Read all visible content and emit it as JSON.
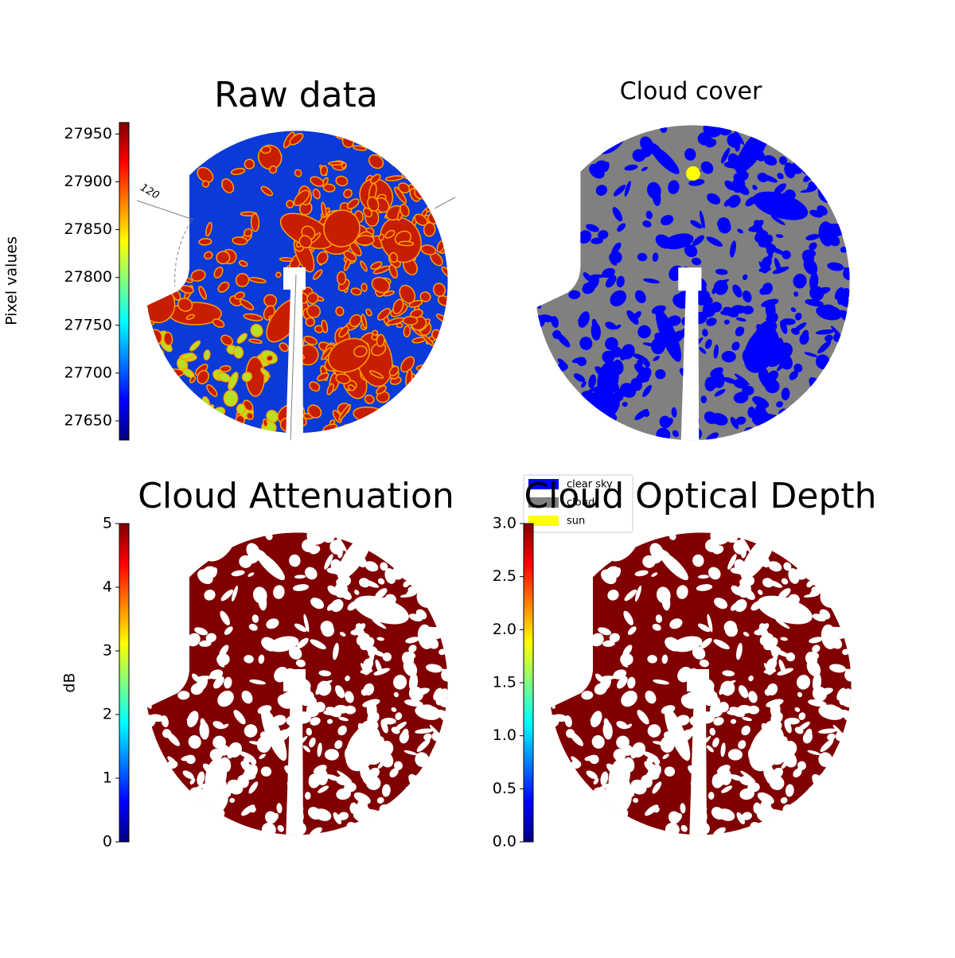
{
  "chart_data": [
    {
      "type": "image",
      "title": "Raw data",
      "annotation": "120",
      "colorbar": {
        "label": "Pixel values",
        "colormap": "jet",
        "lim": [
          27630,
          27962
        ],
        "ticks": [
          27650,
          27700,
          27750,
          27800,
          27850,
          27900,
          27950
        ]
      }
    },
    {
      "type": "classification",
      "title": "Cloud cover",
      "legend": {
        "entries": [
          {
            "name": "clear sky",
            "color": "#0000ff"
          },
          {
            "name": "cloud",
            "color": "#808080"
          },
          {
            "name": "sun",
            "color": "#ffff00"
          }
        ]
      }
    },
    {
      "type": "image",
      "title": "Cloud Attenuation",
      "colorbar": {
        "label": "dB",
        "colormap": "jet",
        "lim": [
          0,
          5
        ],
        "ticks": [
          0,
          1,
          2,
          3,
          4,
          5
        ]
      }
    },
    {
      "type": "image",
      "title": "Cloud Optical Depth",
      "colorbar": {
        "colormap": "jet",
        "lim": [
          0,
          3
        ],
        "ticks": [
          {
            "value": 0,
            "label": "0.0"
          },
          0.5,
          {
            "value": 1,
            "label": "1.0"
          },
          1.5,
          {
            "value": 2,
            "label": "2.0"
          },
          2.5,
          {
            "value": 3,
            "label": "3.0"
          }
        ]
      }
    }
  ]
}
